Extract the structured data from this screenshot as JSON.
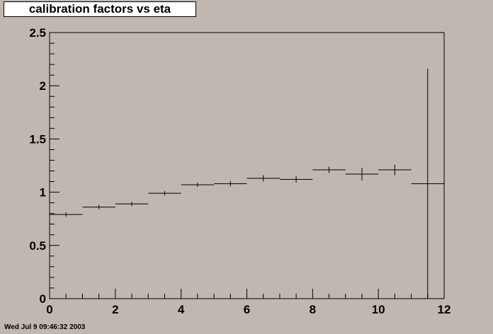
{
  "window": {
    "title": "calibration factors vs eta",
    "timestamp": "Wed Jul  9 09:46:32 2003"
  },
  "chart_data": {
    "type": "scatter",
    "title": "calibration factors vs eta",
    "xlabel": "",
    "ylabel": "",
    "xlim": [
      0,
      12
    ],
    "ylim": [
      0,
      2.5
    ],
    "x_ticks": [
      "0",
      "2",
      "4",
      "6",
      "8",
      "10",
      "12"
    ],
    "y_ticks": [
      "0",
      "0.5",
      "1",
      "1.5",
      "2",
      "2.5"
    ],
    "grid": false,
    "legend": "none",
    "background_color": "#c0b8b0",
    "series": [
      {
        "points": [
          {
            "x": 0.5,
            "xlow": 0,
            "xhigh": 1,
            "y": 0.79,
            "yerr": 0.02
          },
          {
            "x": 1.5,
            "xlow": 1,
            "xhigh": 2,
            "y": 0.86,
            "yerr": 0.02
          },
          {
            "x": 2.5,
            "xlow": 2,
            "xhigh": 3,
            "y": 0.89,
            "yerr": 0.02
          },
          {
            "x": 3.5,
            "xlow": 3,
            "xhigh": 4,
            "y": 0.99,
            "yerr": 0.02
          },
          {
            "x": 4.5,
            "xlow": 4,
            "xhigh": 5,
            "y": 1.07,
            "yerr": 0.02
          },
          {
            "x": 5.5,
            "xlow": 5,
            "xhigh": 6,
            "y": 1.08,
            "yerr": 0.025
          },
          {
            "x": 6.5,
            "xlow": 6,
            "xhigh": 7,
            "y": 1.13,
            "yerr": 0.03
          },
          {
            "x": 7.5,
            "xlow": 7,
            "xhigh": 8,
            "y": 1.12,
            "yerr": 0.03
          },
          {
            "x": 8.5,
            "xlow": 8,
            "xhigh": 9,
            "y": 1.21,
            "yerr": 0.03
          },
          {
            "x": 9.5,
            "xlow": 9,
            "xhigh": 10,
            "y": 1.17,
            "yerr": 0.06
          },
          {
            "x": 10.5,
            "xlow": 10,
            "xhigh": 11,
            "y": 1.21,
            "yerr": 0.05
          },
          {
            "x": 11.5,
            "xlow": 11,
            "xhigh": 12,
            "y": 1.08,
            "yerr": 1.08
          }
        ]
      }
    ]
  }
}
